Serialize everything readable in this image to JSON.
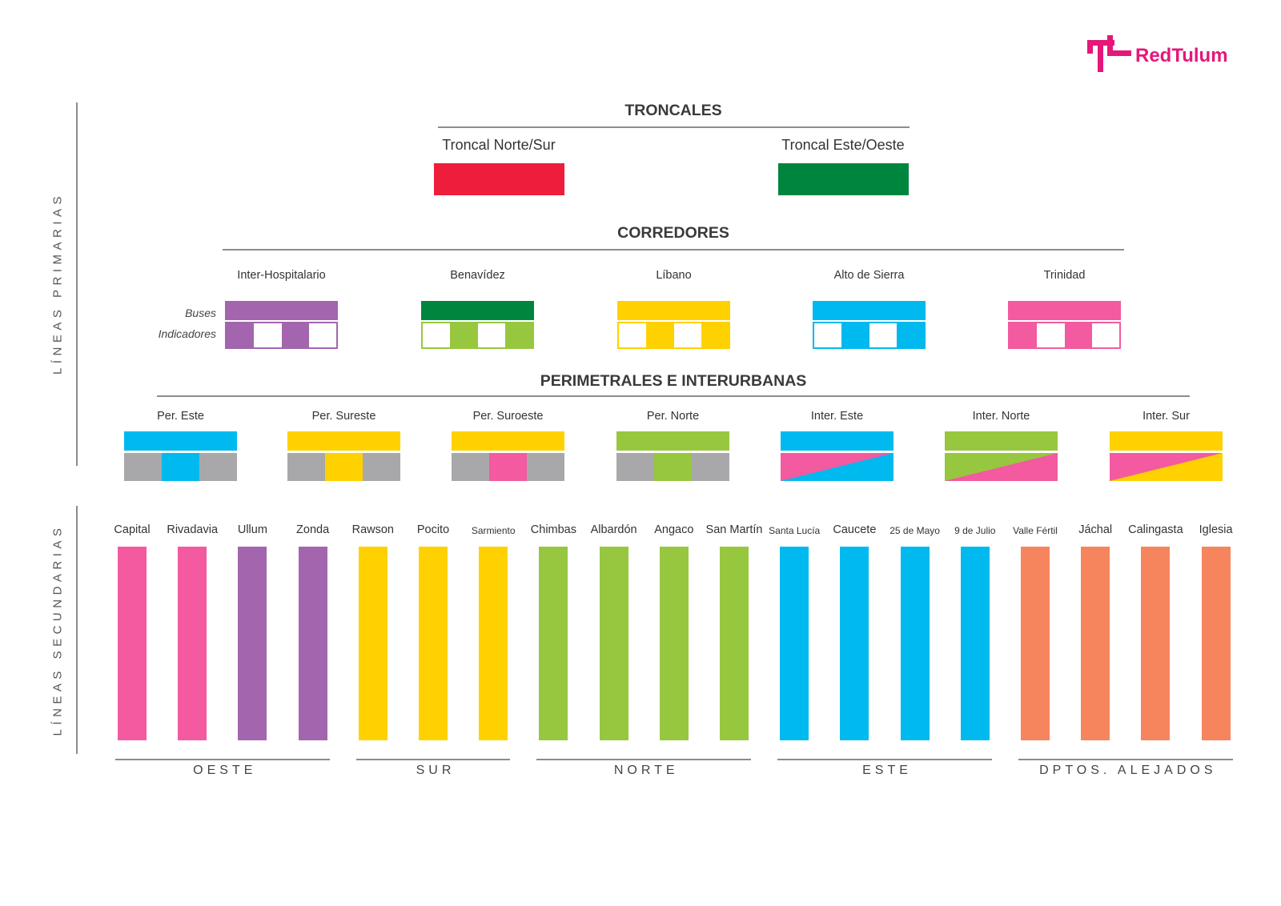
{
  "brand": {
    "name": "RedTulum",
    "color": "#e5177a",
    "logo_icon": "tl-logo-icon"
  },
  "side_labels": {
    "primary": "LÍNEAS PRIMARIAS",
    "secondary": "LÍNEAS SECUNDARIAS"
  },
  "colors": {
    "red": "#ee1d3c",
    "dark_green": "#00853e",
    "purple": "#a365ae",
    "lime": "#97c73e",
    "yellow": "#ffd100",
    "cyan": "#00b9ee",
    "pink": "#f35aa0",
    "gray": "#a8a8aa",
    "orange": "#f6855e"
  },
  "troncales": {
    "title": "TRONCALES",
    "items": [
      {
        "label": "Troncal Norte/Sur",
        "color": "#ee1d3c"
      },
      {
        "label": "Troncal Este/Oeste",
        "color": "#00853e"
      }
    ]
  },
  "corredores": {
    "title": "CORREDORES",
    "row_labels": {
      "buses": "Buses",
      "indicators": "Indicadores"
    },
    "items": [
      {
        "label": "Inter-Hospitalario",
        "color": "#a365ae"
      },
      {
        "label": "Benavídez",
        "color": "#00853e",
        "indicator_color": "#97c73e"
      },
      {
        "label": "Líbano",
        "color": "#ffd100"
      },
      {
        "label": "Alto de Sierra",
        "color": "#00b9ee"
      },
      {
        "label": "Trinidad",
        "color": "#f35aa0"
      }
    ]
  },
  "perimetrales": {
    "title": "PERIMETRALES E INTERURBANAS",
    "items": [
      {
        "label": "Per. Este",
        "style": "tri",
        "top": "#00b9ee",
        "middle": "#00b9ee",
        "side": "#a8a8aa"
      },
      {
        "label": "Per. Sureste",
        "style": "tri",
        "top": "#ffd100",
        "middle": "#ffd100",
        "side": "#a8a8aa"
      },
      {
        "label": "Per. Suroeste",
        "style": "tri",
        "top": "#ffd100",
        "middle": "#f35aa0",
        "side": "#a8a8aa"
      },
      {
        "label": "Per. Norte",
        "style": "tri",
        "top": "#97c73e",
        "middle": "#97c73e",
        "side": "#a8a8aa"
      },
      {
        "label": "Inter. Este",
        "style": "diag",
        "top": "#00b9ee",
        "upper": "#00b9ee",
        "lower": "#f35aa0"
      },
      {
        "label": "Inter. Norte",
        "style": "diag",
        "top": "#97c73e",
        "upper": "#97c73e",
        "lower": "#f35aa0"
      },
      {
        "label": "Inter. Sur",
        "style": "diag",
        "top": "#ffd100",
        "upper": "#f35aa0",
        "lower": "#ffd100"
      }
    ]
  },
  "secundarias": {
    "lines": [
      {
        "label": "Capital",
        "color": "#f35aa0"
      },
      {
        "label": "Rivadavia",
        "color": "#f35aa0"
      },
      {
        "label": "Ullum",
        "color": "#a365ae"
      },
      {
        "label": "Zonda",
        "color": "#a365ae"
      },
      {
        "label": "Rawson",
        "color": "#ffd100"
      },
      {
        "label": "Pocito",
        "color": "#ffd100"
      },
      {
        "label": "Sarmiento",
        "color": "#ffd100",
        "small": true
      },
      {
        "label": "Chimbas",
        "color": "#97c73e"
      },
      {
        "label": "Albardón",
        "color": "#97c73e"
      },
      {
        "label": "Angaco",
        "color": "#97c73e"
      },
      {
        "label": "San Martín",
        "color": "#97c73e"
      },
      {
        "label": "Santa Lucía",
        "color": "#00b9ee",
        "small": true
      },
      {
        "label": "Caucete",
        "color": "#00b9ee"
      },
      {
        "label": "25 de Mayo",
        "color": "#00b9ee",
        "small": true
      },
      {
        "label": "9 de Julio",
        "color": "#00b9ee",
        "small": true
      },
      {
        "label": "Valle Fértil",
        "color": "#f6855e",
        "small": true
      },
      {
        "label": "Jáchal",
        "color": "#f6855e"
      },
      {
        "label": "Calingasta",
        "color": "#f6855e"
      },
      {
        "label": "Iglesia",
        "color": "#f6855e"
      }
    ],
    "groups": [
      {
        "label": "OESTE",
        "from": 0,
        "to": 3
      },
      {
        "label": "SUR",
        "from": 4,
        "to": 6
      },
      {
        "label": "NORTE",
        "from": 7,
        "to": 10
      },
      {
        "label": "ESTE",
        "from": 11,
        "to": 14
      },
      {
        "label": "DPTOS. ALEJADOS",
        "from": 15,
        "to": 18
      }
    ]
  }
}
